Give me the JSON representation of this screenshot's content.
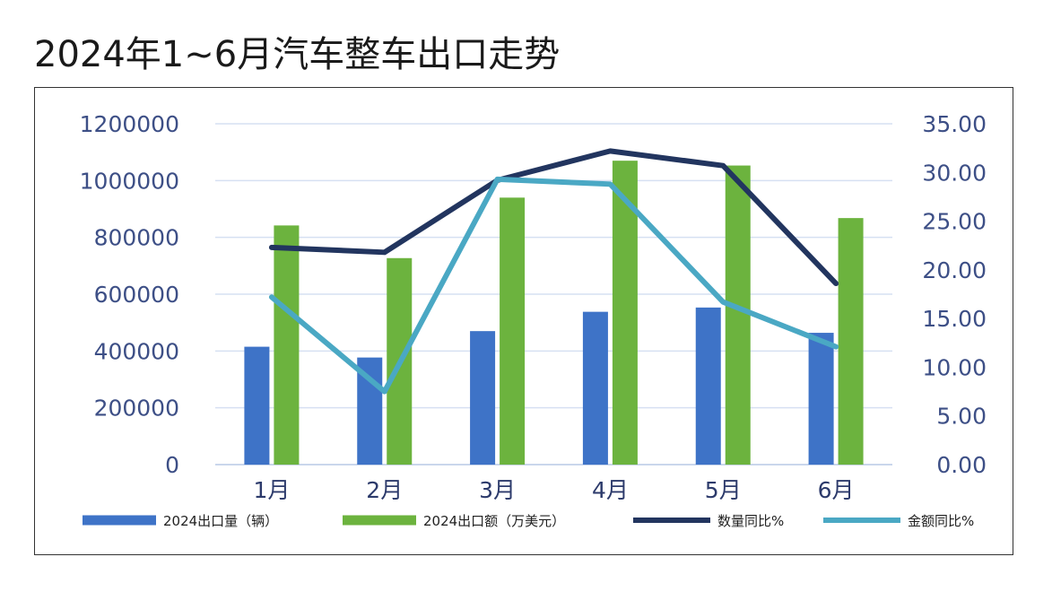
{
  "title": "2024年1~6月汽车整车出口走势",
  "chart_data": {
    "type": "bar",
    "categories": [
      "1月",
      "2月",
      "3月",
      "4月",
      "5月",
      "6月"
    ],
    "y_left": {
      "ylim": [
        0,
        1200000
      ],
      "ticks": [
        "0",
        "200000",
        "400000",
        "600000",
        "800000",
        "1000000",
        "1200000"
      ]
    },
    "y_right": {
      "ylim": [
        0,
        35
      ],
      "ticks": [
        "0.00",
        "5.00",
        "10.00",
        "15.00",
        "20.00",
        "25.00",
        "30.00",
        "35.00"
      ]
    },
    "grid": true,
    "legend_position": "bottom",
    "series": [
      {
        "name": "2024出口量（辆）",
        "kind": "bar",
        "axis": "left",
        "color": "#3e73c7",
        "values": [
          415000,
          377000,
          470000,
          538000,
          553000,
          464000
        ]
      },
      {
        "name": "2024出口额（万美元）",
        "kind": "bar",
        "axis": "left",
        "color": "#6cb33e",
        "values": [
          842000,
          727000,
          940000,
          1070000,
          1053000,
          868000
        ]
      },
      {
        "name": "数量同比%",
        "kind": "line",
        "axis": "right",
        "color": "#22355f",
        "values": [
          22.3,
          21.8,
          29.2,
          32.2,
          30.7,
          18.6
        ]
      },
      {
        "name": "金额同比%",
        "kind": "line",
        "axis": "right",
        "color": "#4aa8c4",
        "values": [
          17.2,
          7.5,
          29.3,
          28.8,
          16.7,
          12.1
        ]
      }
    ]
  }
}
